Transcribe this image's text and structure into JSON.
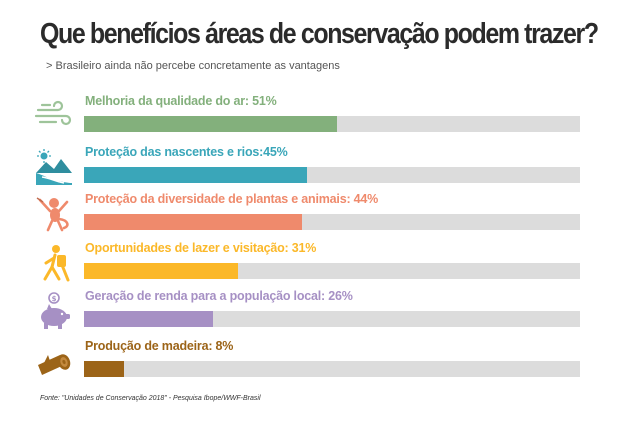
{
  "header": {
    "title": "Que benefícios áreas de conservação podem trazer?",
    "subtitle": "> Brasileiro ainda não percebe concretamente as vantagens"
  },
  "chart_data": {
    "type": "bar",
    "orientation": "horizontal",
    "xlim": [
      0,
      100
    ],
    "categories": [
      "Melhoria da qualidade do ar",
      "Proteção das nascentes e rios",
      "Proteção da diversidade de plantas e animais",
      "Oportunidades de lazer e visitação",
      "Geração de renda para a população local",
      "Produção de madeira"
    ],
    "values": [
      51,
      45,
      44,
      31,
      26,
      8
    ],
    "labels": [
      "Melhoria da qualidade do ar: 51%",
      "Proteção das nascentes e rios:45%",
      "Proteção da diversidade de plantas e animais: 44%",
      "Oportunidades de lazer e visitação: 31%",
      "Geração de renda para a população local: 26%",
      "Produção de madeira: 8%"
    ],
    "colors": [
      "#83b07c",
      "#3aa6b9",
      "#ef8a6c",
      "#fbb829",
      "#a690c4",
      "#9c6418"
    ],
    "icons": [
      "wind-icon",
      "river-landscape-icon",
      "monkey-icon",
      "hiker-icon",
      "piggy-bank-icon",
      "log-icon"
    ],
    "track_color": "#dcdcdc"
  },
  "footer": {
    "source": "Fonte: \"Unidades de Conservação 2018\" - Pesquisa Ibope/WWF-Brasil"
  }
}
